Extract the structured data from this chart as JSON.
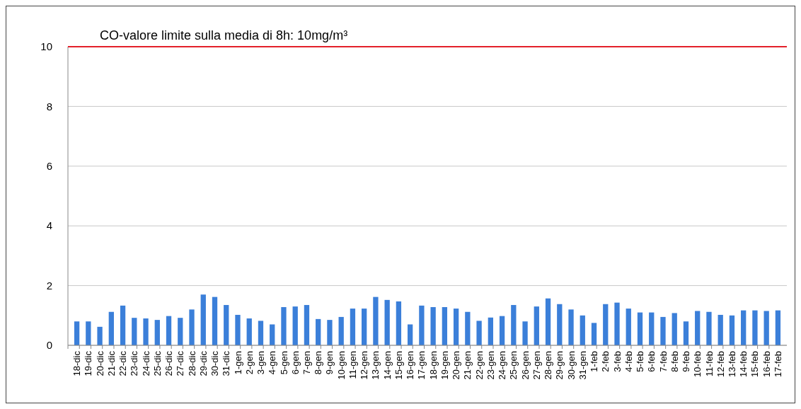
{
  "chart_data": {
    "type": "bar",
    "categories": [
      "18-dic",
      "19-dic",
      "20-dic",
      "21-dic",
      "22-dic",
      "23-dic",
      "24-dic",
      "25-dic",
      "26-dic",
      "27-dic",
      "28-dic",
      "29-dic",
      "30-dic",
      "31-dic",
      "1-gen",
      "2-gen",
      "3-gen",
      "4-gen",
      "5-gen",
      "6-gen",
      "7-gen",
      "8-gen",
      "9-gen",
      "10-gen",
      "11-gen",
      "12-gen",
      "13-gen",
      "14-gen",
      "15-gen",
      "16-gen",
      "17-gen",
      "18-gen",
      "19-gen",
      "20-gen",
      "21-gen",
      "22-gen",
      "23-gen",
      "24-gen",
      "25-gen",
      "26-gen",
      "27-gen",
      "28-gen",
      "29-gen",
      "30-gen",
      "31-gen",
      "1-feb",
      "2-feb",
      "3-feb",
      "4-feb",
      "5-feb",
      "6-feb",
      "7-feb",
      "8-feb",
      "9-feb",
      "10-feb",
      "11-feb",
      "12-feb",
      "13-feb",
      "14-feb",
      "15-feb",
      "16-feb",
      "17-feb"
    ],
    "values": [
      0.8,
      0.8,
      0.62,
      1.12,
      1.33,
      0.92,
      0.9,
      0.85,
      0.98,
      0.92,
      1.2,
      1.7,
      1.62,
      1.35,
      1.02,
      0.9,
      0.82,
      0.7,
      1.28,
      1.3,
      1.35,
      0.88,
      0.85,
      0.95,
      1.23,
      1.23,
      1.62,
      1.52,
      1.47,
      0.7,
      1.33,
      1.28,
      1.28,
      1.23,
      1.12,
      0.82,
      0.93,
      0.98,
      1.35,
      0.8,
      1.3,
      1.57,
      1.38,
      1.2,
      1.0,
      0.75,
      1.38,
      1.43,
      1.23,
      1.1,
      1.1,
      0.95,
      1.08,
      0.8,
      1.15,
      1.12,
      1.02,
      1.0,
      1.17,
      1.17,
      1.15,
      1.17
    ],
    "color": "#3b7fd9",
    "ylim": [
      0,
      10
    ],
    "yticks": [
      0,
      2,
      4,
      6,
      8,
      10
    ],
    "grid": "y",
    "ref_lines": [
      {
        "axis": "y",
        "value": 10,
        "label": "CO-valore limite sulla media di 8h: 10mg/m³",
        "color": "#e3202a"
      }
    ]
  }
}
